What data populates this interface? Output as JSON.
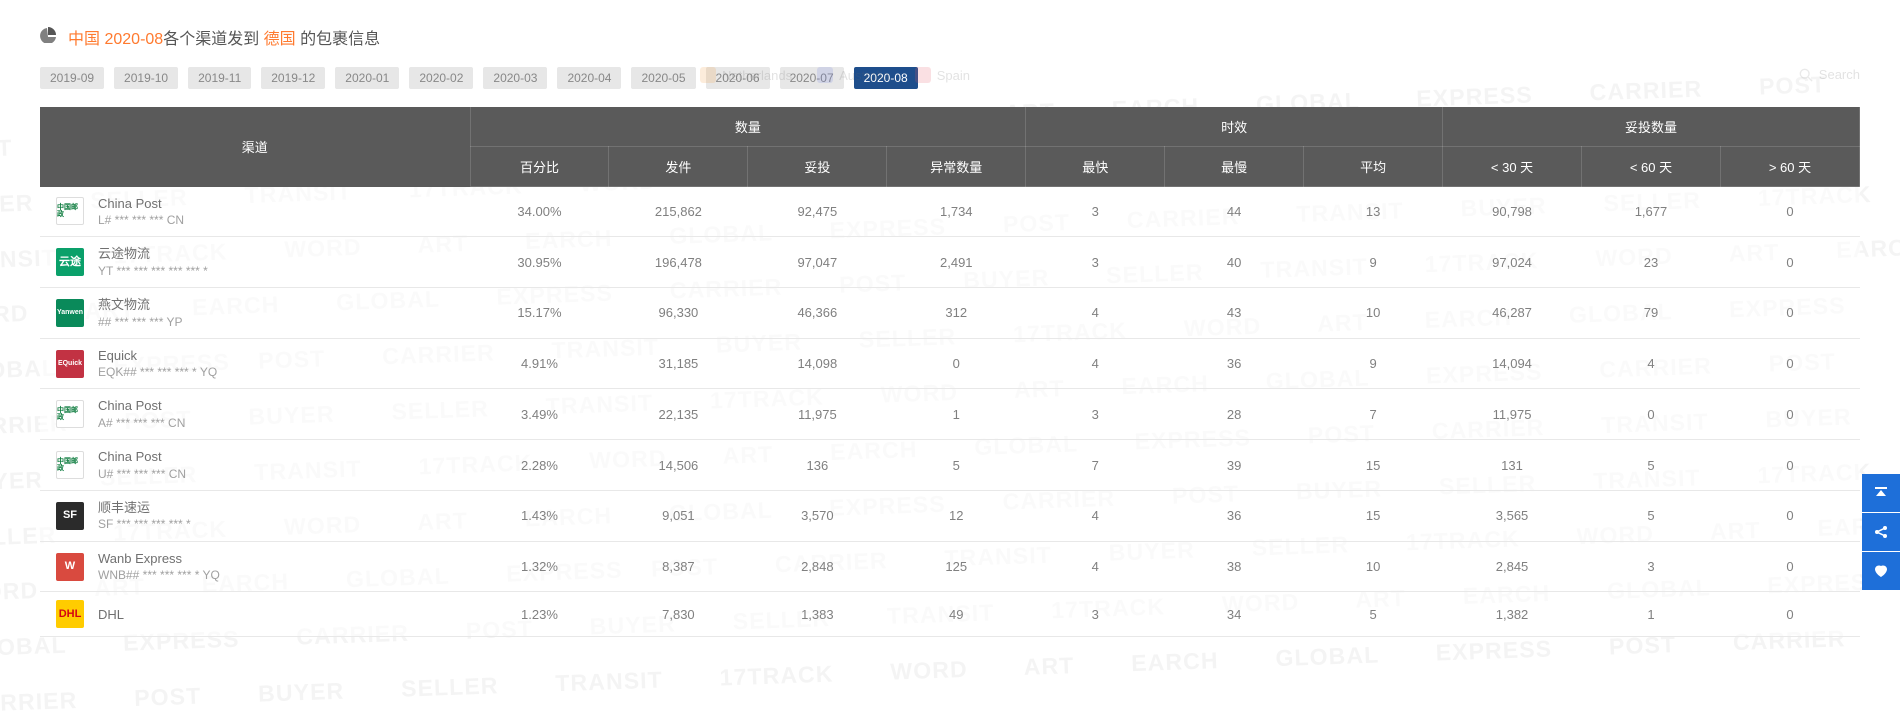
{
  "title": {
    "country": "中国",
    "date": "2020-08",
    "mid": "各个渠道发到",
    "target": "德国",
    "suffix": "的包裹信息"
  },
  "tabs": [
    {
      "label": "2019-09",
      "active": false
    },
    {
      "label": "2019-10",
      "active": false
    },
    {
      "label": "2019-11",
      "active": false
    },
    {
      "label": "2019-12",
      "active": false
    },
    {
      "label": "2020-01",
      "active": false
    },
    {
      "label": "2020-02",
      "active": false
    },
    {
      "label": "2020-03",
      "active": false
    },
    {
      "label": "2020-04",
      "active": false
    },
    {
      "label": "2020-05",
      "active": false
    },
    {
      "label": "2020-06",
      "active": false
    },
    {
      "label": "2020-07",
      "active": false
    },
    {
      "label": "2020-08",
      "active": true
    }
  ],
  "ghost": {
    "filters": [
      {
        "label": "Netherlands",
        "color": "#f29b3c"
      },
      {
        "label": "Australia",
        "color": "#6c7de0"
      },
      {
        "label": "Spain",
        "color": "#e85a6a"
      }
    ],
    "search_label": "Search"
  },
  "headers": {
    "channel": "渠道",
    "qty_group": "数量",
    "time_group": "时效",
    "delivered_group": "妥投数量",
    "percent": "百分比",
    "sent": "发件",
    "delivered": "妥投",
    "abnormal": "异常数量",
    "fastest": "最快",
    "slowest": "最慢",
    "avg": "平均",
    "lt30": "< 30 天",
    "lt60": "< 60 天",
    "gt60": "> 60 天"
  },
  "rows": [
    {
      "name": "China Post",
      "track": "L# *** *** *** CN",
      "logo_bg": "#ffffff",
      "logo_fg": "#0a7a3c",
      "logo_text": "中国邮政",
      "percent": "34.00%",
      "sent": "215,862",
      "delivered": "92,475",
      "abnormal": "1,734",
      "fast": "3",
      "slow": "44",
      "avg": "13",
      "lt30": "90,798",
      "lt60": "1,677",
      "gt60": "0"
    },
    {
      "name": "云途物流",
      "track": "YT *** *** *** *** *** *",
      "logo_bg": "#0aa06a",
      "logo_fg": "#ffffff",
      "logo_text": "云途",
      "percent": "30.95%",
      "sent": "196,478",
      "delivered": "97,047",
      "abnormal": "2,491",
      "fast": "3",
      "slow": "40",
      "avg": "9",
      "lt30": "97,024",
      "lt60": "23",
      "gt60": "0"
    },
    {
      "name": "燕文物流",
      "track": "## *** *** *** YP",
      "logo_bg": "#0a8a5a",
      "logo_fg": "#ffffff",
      "logo_text": "Yanwen",
      "percent": "15.17%",
      "sent": "96,330",
      "delivered": "46,366",
      "abnormal": "312",
      "fast": "4",
      "slow": "43",
      "avg": "10",
      "lt30": "46,287",
      "lt60": "79",
      "gt60": "0"
    },
    {
      "name": "Equick",
      "track": "EQK## *** *** *** * YQ",
      "logo_bg": "#c23243",
      "logo_fg": "#ffffff",
      "logo_text": "EQuick",
      "percent": "4.91%",
      "sent": "31,185",
      "delivered": "14,098",
      "abnormal": "0",
      "fast": "4",
      "slow": "36",
      "avg": "9",
      "lt30": "14,094",
      "lt60": "4",
      "gt60": "0"
    },
    {
      "name": "China Post",
      "track": "A# *** *** *** CN",
      "logo_bg": "#ffffff",
      "logo_fg": "#0a7a3c",
      "logo_text": "中国邮政",
      "percent": "3.49%",
      "sent": "22,135",
      "delivered": "11,975",
      "abnormal": "1",
      "fast": "3",
      "slow": "28",
      "avg": "7",
      "lt30": "11,975",
      "lt60": "0",
      "gt60": "0"
    },
    {
      "name": "China Post",
      "track": "U# *** *** *** CN",
      "logo_bg": "#ffffff",
      "logo_fg": "#0a7a3c",
      "logo_text": "中国邮政",
      "percent": "2.28%",
      "sent": "14,506",
      "delivered": "136",
      "abnormal": "5",
      "fast": "7",
      "slow": "39",
      "avg": "15",
      "lt30": "131",
      "lt60": "5",
      "gt60": "0"
    },
    {
      "name": "顺丰速运",
      "track": "SF *** *** *** *** *",
      "logo_bg": "#2b2b2b",
      "logo_fg": "#ffffff",
      "logo_text": "SF",
      "percent": "1.43%",
      "sent": "9,051",
      "delivered": "3,570",
      "abnormal": "12",
      "fast": "4",
      "slow": "36",
      "avg": "15",
      "lt30": "3,565",
      "lt60": "5",
      "gt60": "0"
    },
    {
      "name": "Wanb Express",
      "track": "WNB## *** *** *** * YQ",
      "logo_bg": "#d94a3f",
      "logo_fg": "#ffffff",
      "logo_text": "W",
      "percent": "1.32%",
      "sent": "8,387",
      "delivered": "2,848",
      "abnormal": "125",
      "fast": "4",
      "slow": "38",
      "avg": "10",
      "lt30": "2,845",
      "lt60": "3",
      "gt60": "0"
    },
    {
      "name": "DHL",
      "track": "",
      "logo_bg": "#ffcc00",
      "logo_fg": "#d40511",
      "logo_text": "DHL",
      "percent": "1.23%",
      "sent": "7,830",
      "delivered": "1,383",
      "abnormal": "49",
      "fast": "3",
      "slow": "34",
      "avg": "5",
      "lt30": "1,382",
      "lt60": "1",
      "gt60": "0"
    }
  ],
  "side_buttons": [
    "top",
    "share",
    "favorite"
  ],
  "watermark": "POST  CARRIER  TRANSIT  BUYER  SELLER  17TRACK  WORD  ART  EARCH  GLOBAL  EXPRESS  CARRIER  POST  BUYER  SELLER  TRANSIT  17TRACK  WORD  ART  EARCH  GLOBAL  EXPRESS  CARRIER  POST  BUYER  SELLER  TRANSIT  17TRACK  WORD  ART  EARCH  GLOBAL  EXPRESS  POST  CARRIER  TRANSIT  BUYER  SELLER  17TRACK  WORD  ART  EARCH  GLOBAL  EXPRESS  CARRIER  POST  BUYER  SELLER  TRANSIT  17TRACK  WORD  ART  EARCH  GLOBAL  EXPRESS"
}
